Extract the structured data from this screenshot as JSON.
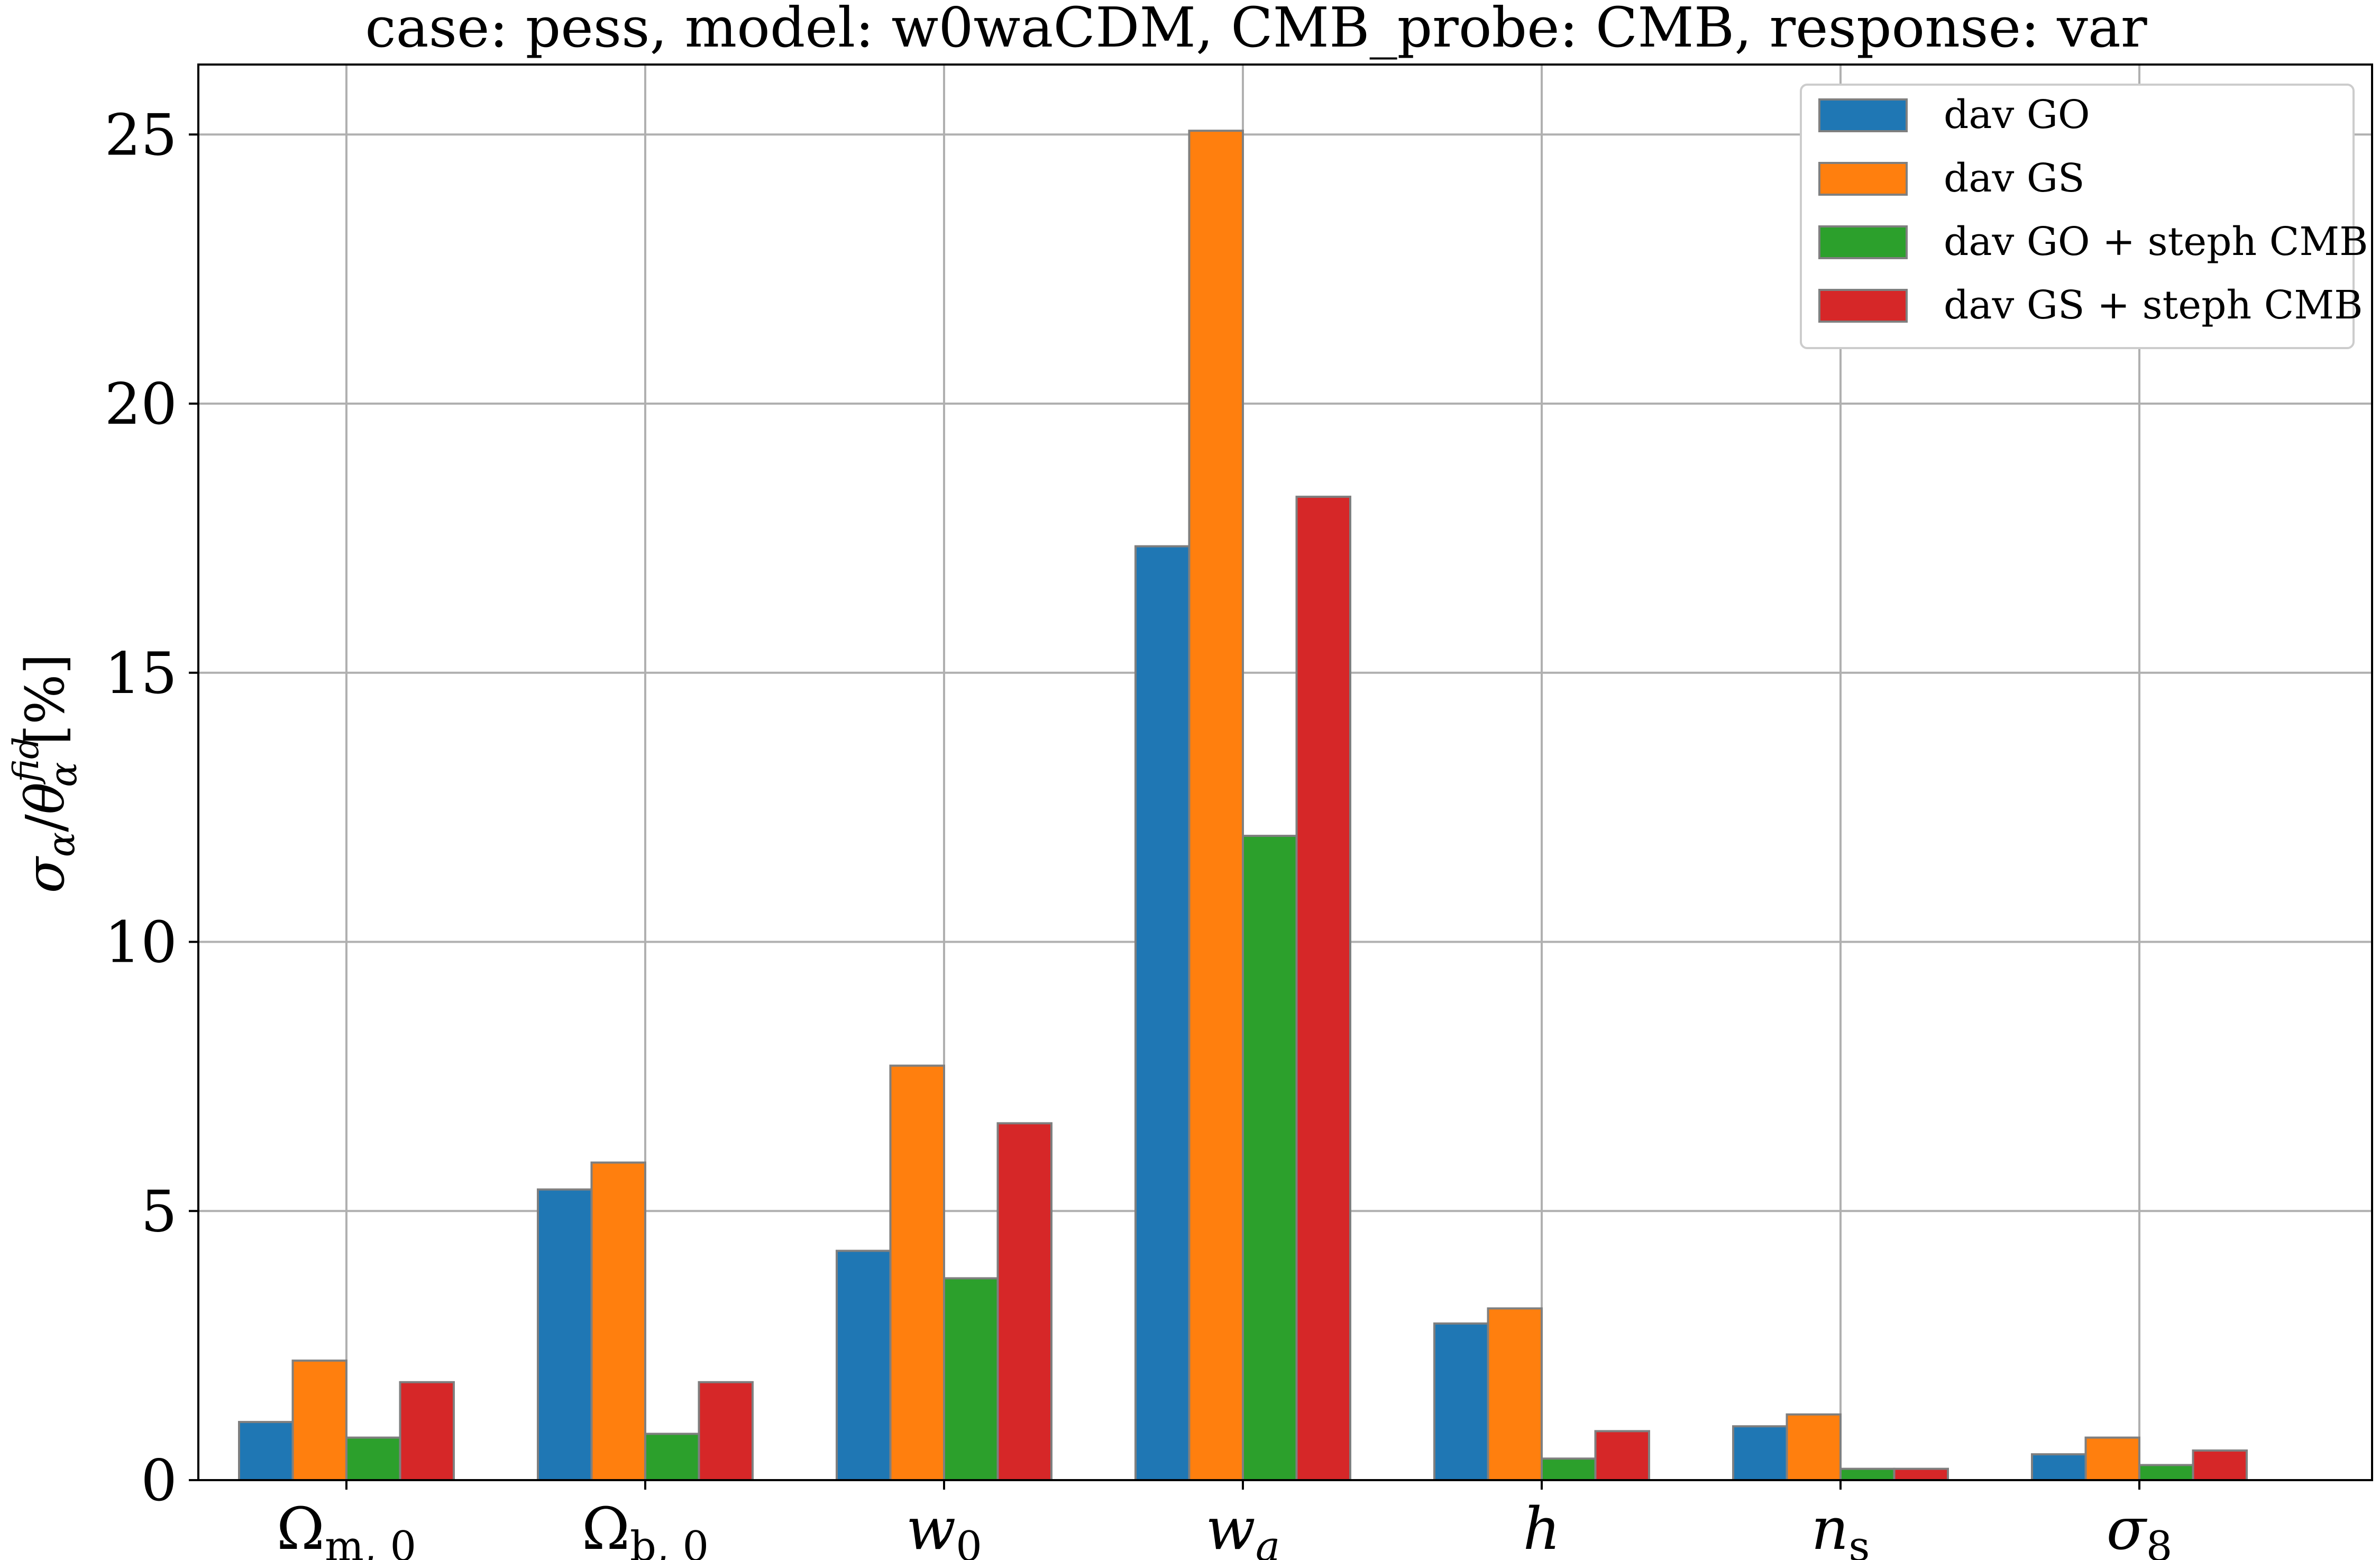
{
  "chart_data": {
    "type": "bar",
    "title": "case: pess, model: w0waCDM, CMB_probe: CMB, response: var",
    "xlabel": "",
    "ylabel": "σα/θαfid [%]",
    "ylabel_parts": {
      "main": "σ",
      "main_sub": "α",
      "slash": "/",
      "theta": "θ",
      "theta_sub": "α",
      "theta_sup": "fid",
      "units": "[%]"
    },
    "ylim": [
      0,
      26.3
    ],
    "yticks": [
      0,
      5,
      10,
      15,
      20,
      25
    ],
    "grid": true,
    "legend_position": "top-right",
    "categories": [
      "Ωm,0",
      "Ωb,0",
      "w0",
      "wa",
      "h",
      "ns",
      "σ8"
    ],
    "category_parts": [
      {
        "main": "Ω",
        "sub": "m, 0",
        "sub_upright": true,
        "upright": true
      },
      {
        "main": "Ω",
        "sub": "b, 0",
        "sub_upright": true,
        "upright": true
      },
      {
        "main": "w",
        "sub": "0",
        "sub_upright": true,
        "upright": false
      },
      {
        "main": "w",
        "sub": "a",
        "sub_upright": false,
        "upright": false
      },
      {
        "main": "h",
        "sub": "",
        "sub_upright": false,
        "upright": false
      },
      {
        "main": "n",
        "sub": "s",
        "sub_upright": true,
        "upright": false
      },
      {
        "main": "σ",
        "sub": "8",
        "sub_upright": true,
        "upright": false
      }
    ],
    "series": [
      {
        "name": "dav GO",
        "color": "#1f77b4",
        "values": [
          1.08,
          5.4,
          4.26,
          17.35,
          2.91,
          1.0,
          0.48
        ]
      },
      {
        "name": "dav GS",
        "color": "#ff7f0e",
        "values": [
          2.22,
          5.9,
          7.7,
          25.07,
          3.19,
          1.22,
          0.79
        ]
      },
      {
        "name": "dav GO + steph CMB",
        "color": "#2ca02c",
        "values": [
          0.79,
          0.86,
          3.75,
          11.97,
          0.4,
          0.21,
          0.28
        ]
      },
      {
        "name": "dav GS + steph CMB",
        "color": "#d62728",
        "values": [
          1.82,
          1.82,
          6.63,
          18.27,
          0.91,
          0.21,
          0.55
        ]
      }
    ]
  }
}
